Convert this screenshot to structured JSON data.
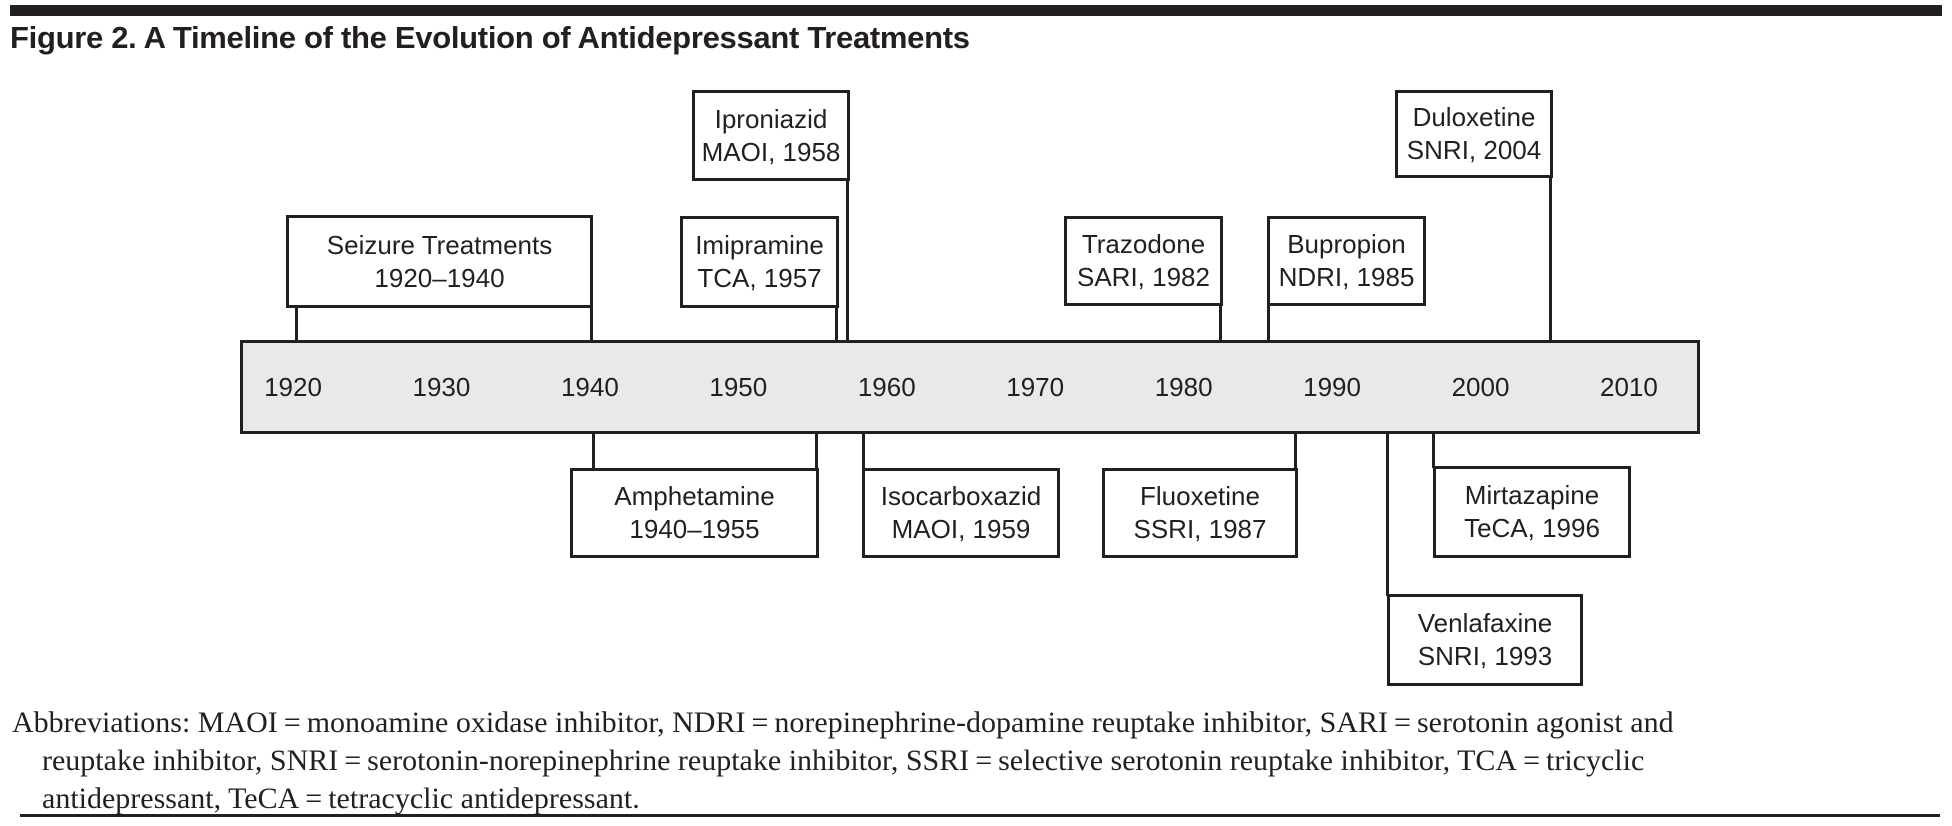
{
  "figure": {
    "title": "Figure 2. A Timeline of the Evolution of Antidepressant Treatments"
  },
  "timeline": {
    "bar_fill": "#e9e9e9",
    "line_color": "#231f20",
    "range_start": "1920",
    "range_end": "2010",
    "decades": [
      "1920",
      "1930",
      "1940",
      "1950",
      "1960",
      "1970",
      "1980",
      "1990",
      "2000",
      "2010"
    ]
  },
  "events": {
    "above": [
      {
        "id": "seizure",
        "name": "Seizure Treatments",
        "detail": "1920–1940"
      },
      {
        "id": "iproniazid",
        "name": "Iproniazid",
        "detail": "MAOI, 1958"
      },
      {
        "id": "imipramine",
        "name": "Imipramine",
        "detail": "TCA, 1957"
      },
      {
        "id": "trazodone",
        "name": "Trazodone",
        "detail": "SARI, 1982"
      },
      {
        "id": "bupropion",
        "name": "Bupropion",
        "detail": "NDRI, 1985"
      },
      {
        "id": "duloxetine",
        "name": "Duloxetine",
        "detail": "SNRI, 2004"
      }
    ],
    "below": [
      {
        "id": "amphetamine",
        "name": "Amphetamine",
        "detail": "1940–1955"
      },
      {
        "id": "isocarboxazid",
        "name": "Isocarboxazid",
        "detail": "MAOI, 1959"
      },
      {
        "id": "fluoxetine",
        "name": "Fluoxetine",
        "detail": "SSRI, 1987"
      },
      {
        "id": "mirtazapine",
        "name": "Mirtazapine",
        "detail": "TeCA, 1996"
      },
      {
        "id": "venlafaxine",
        "name": "Venlafaxine",
        "detail": "SNRI, 1993"
      }
    ]
  },
  "abbreviations": {
    "lines": [
      "Abbreviations: MAOI = monoamine oxidase inhibitor, NDRI = norepinephrine-dopamine reuptake inhibitor, SARI = serotonin agonist and",
      "reuptake inhibitor, SNRI = serotonin-norepinephrine reuptake inhibitor, SSRI = selective serotonin reuptake inhibitor, TCA = tricyclic",
      "antidepressant, TeCA = tetracyclic antidepressant."
    ]
  }
}
